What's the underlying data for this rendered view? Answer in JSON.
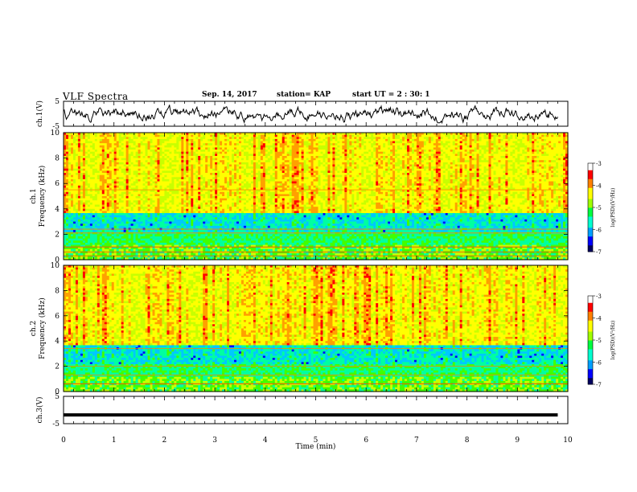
{
  "header": {
    "title": "VLF Spectra",
    "date": "Sep. 14, 2017",
    "station": "station= KAP",
    "start_ut": "start UT = 2 : 30: 1"
  },
  "chart_data": [
    {
      "type": "line",
      "title": "",
      "ylabel": "ch.1(V)",
      "ylim": [
        -5,
        5
      ],
      "yticks": [
        "5",
        "-5"
      ],
      "xlim": [
        0,
        10
      ],
      "description_values": "waveform oscillating roughly between -3 and 3 V across 0-9.8 min",
      "series": [
        {
          "values_range": [
            -3,
            3
          ]
        }
      ]
    },
    {
      "type": "heatmap",
      "ylabel": "ch.1\nFrequency (kHz)",
      "ylim": [
        0,
        10
      ],
      "yticks": [
        "0",
        "2",
        "4",
        "6",
        "8",
        "10"
      ],
      "xlim": [
        0,
        10
      ],
      "colorbar": {
        "label": "log(PSD)(V²/Hz)",
        "range": [
          -7,
          -3
        ],
        "ticks": [
          "-3",
          "-4",
          "-5",
          "-6",
          "-7"
        ]
      }
    },
    {
      "type": "heatmap",
      "ylabel": "ch.2\nFrequency (kHz)",
      "ylim": [
        0,
        10
      ],
      "yticks": [
        "0",
        "2",
        "4",
        "6",
        "8",
        "10"
      ],
      "xlim": [
        0,
        10
      ],
      "colorbar": {
        "label": "log(PSD)(V²/Hz)",
        "range": [
          -7,
          -3
        ],
        "ticks": [
          "-3",
          "-4",
          "-5",
          "-6",
          "-7"
        ]
      }
    },
    {
      "type": "line",
      "ylabel": "ch.3(V)",
      "ylim": [
        -5,
        5
      ],
      "yticks": [
        "5",
        "-5"
      ],
      "xlim": [
        0,
        10
      ],
      "series": [
        {
          "constant_value": -1.8
        }
      ]
    }
  ],
  "xaxis": {
    "label": "Time (min)",
    "ticks": [
      "0",
      "1",
      "2",
      "3",
      "4",
      "5",
      "6",
      "7",
      "8",
      "9",
      "10"
    ]
  },
  "colors": {
    "colormap": [
      "#00005a",
      "#0000ff",
      "#00c8ff",
      "#00ffa0",
      "#40ff00",
      "#c8ff00",
      "#ffff00",
      "#ffa000",
      "#ff0000",
      "#ffffff"
    ],
    "line": "#000000"
  }
}
